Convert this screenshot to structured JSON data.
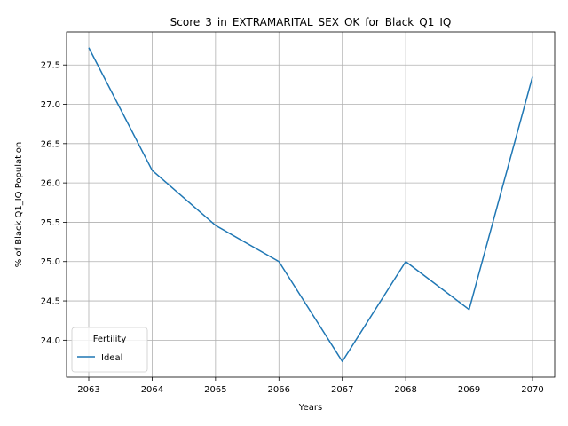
{
  "chart_data": {
    "type": "line",
    "title": "Score_3_in_EXTRAMARITAL_SEX_OK_for_Black_Q1_IQ",
    "xlabel": "Years",
    "ylabel": "% of Black Q1_IQ Population",
    "x": [
      2063,
      2064,
      2065,
      2066,
      2067,
      2068,
      2069,
      2070
    ],
    "series": [
      {
        "name": "Ideal",
        "color": "#1f77b4",
        "values": [
          27.72,
          26.16,
          25.46,
          25.0,
          23.73,
          25.0,
          24.39,
          27.35
        ]
      }
    ],
    "xlim": [
      2062.65,
      2070.35
    ],
    "ylim": [
      23.53,
      27.92
    ],
    "xticks": [
      "2063",
      "2064",
      "2065",
      "2066",
      "2067",
      "2068",
      "2069",
      "2070"
    ],
    "yticks": [
      "24.0",
      "24.5",
      "25.0",
      "25.5",
      "26.0",
      "26.5",
      "27.0",
      "27.5"
    ],
    "grid": true,
    "legend": {
      "title": "Fertility",
      "position": "lower-left"
    }
  }
}
